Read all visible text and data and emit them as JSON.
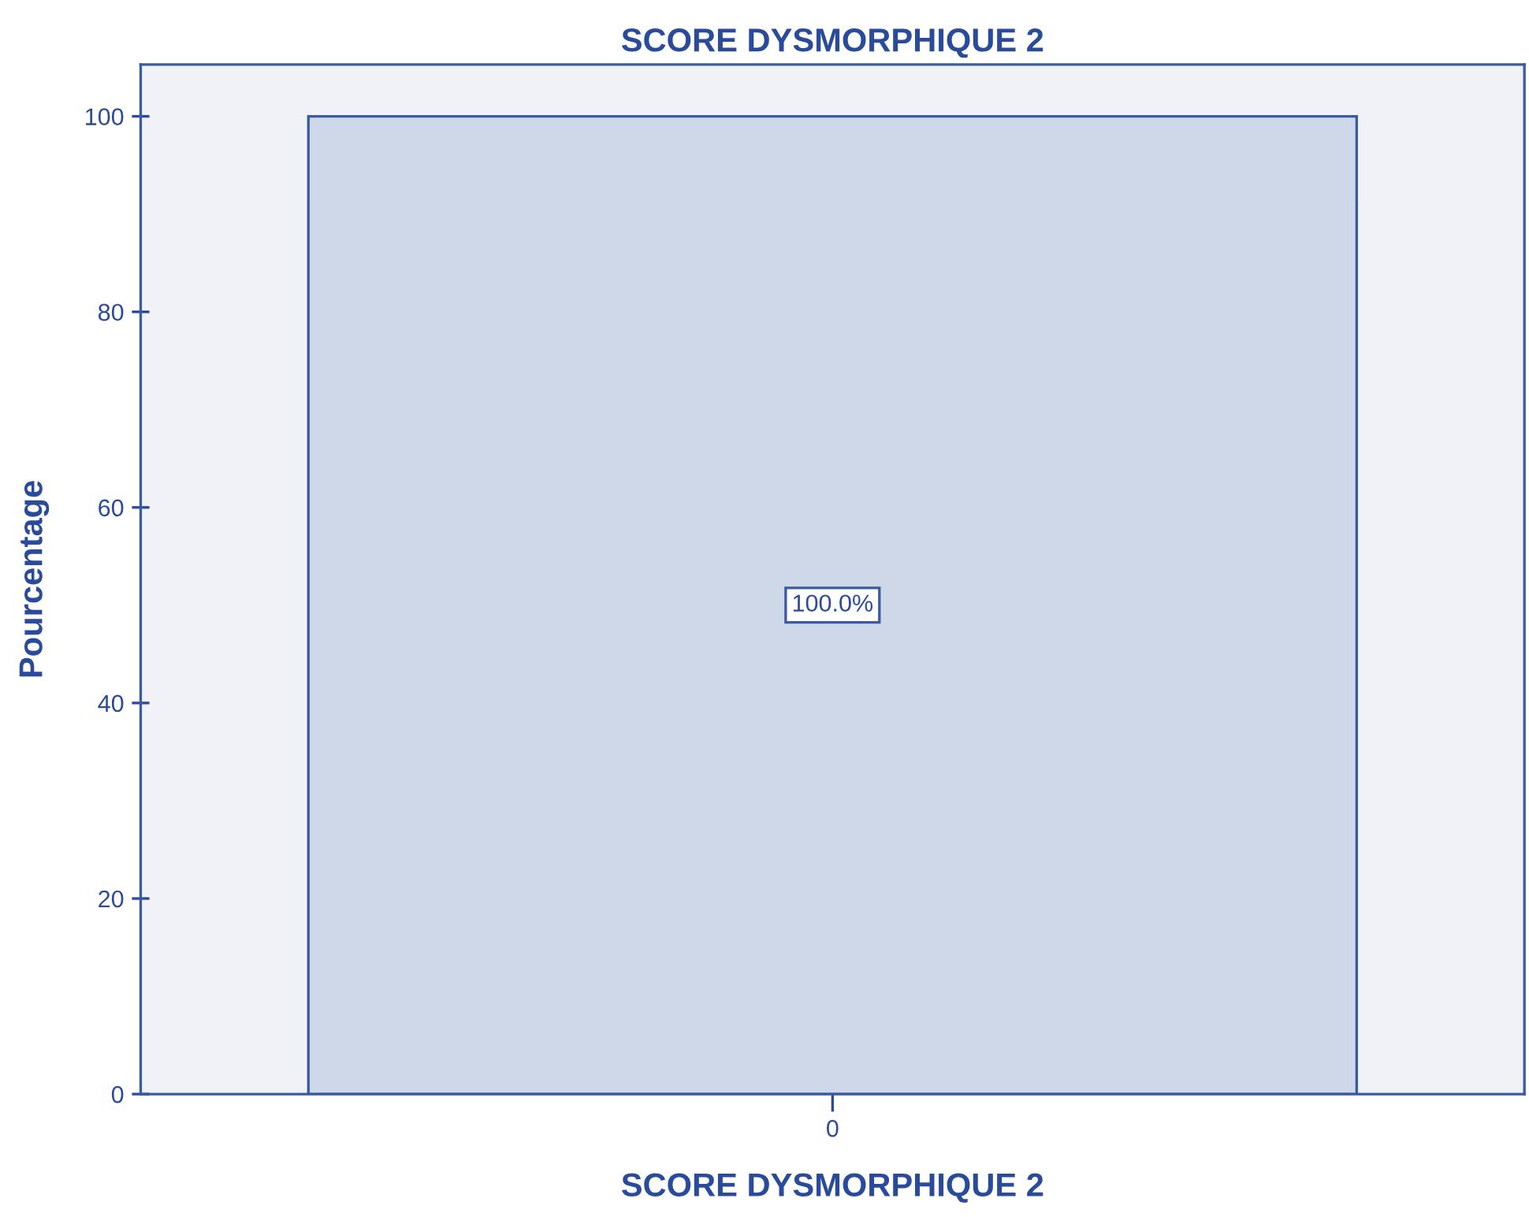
{
  "chart_data": {
    "type": "bar",
    "title": "SCORE DYSMORPHIQUE 2",
    "xlabel": "SCORE DYSMORPHIQUE 2",
    "ylabel": "Pourcentage",
    "categories": [
      "0"
    ],
    "values": [
      100
    ],
    "color": "#cfd8e8",
    "value_labels": [
      "100.0%"
    ],
    "ylim": [
      0,
      105.3
    ],
    "yticks": [
      0,
      20,
      40,
      60,
      80,
      100
    ],
    "grid": false,
    "legend": false
  }
}
